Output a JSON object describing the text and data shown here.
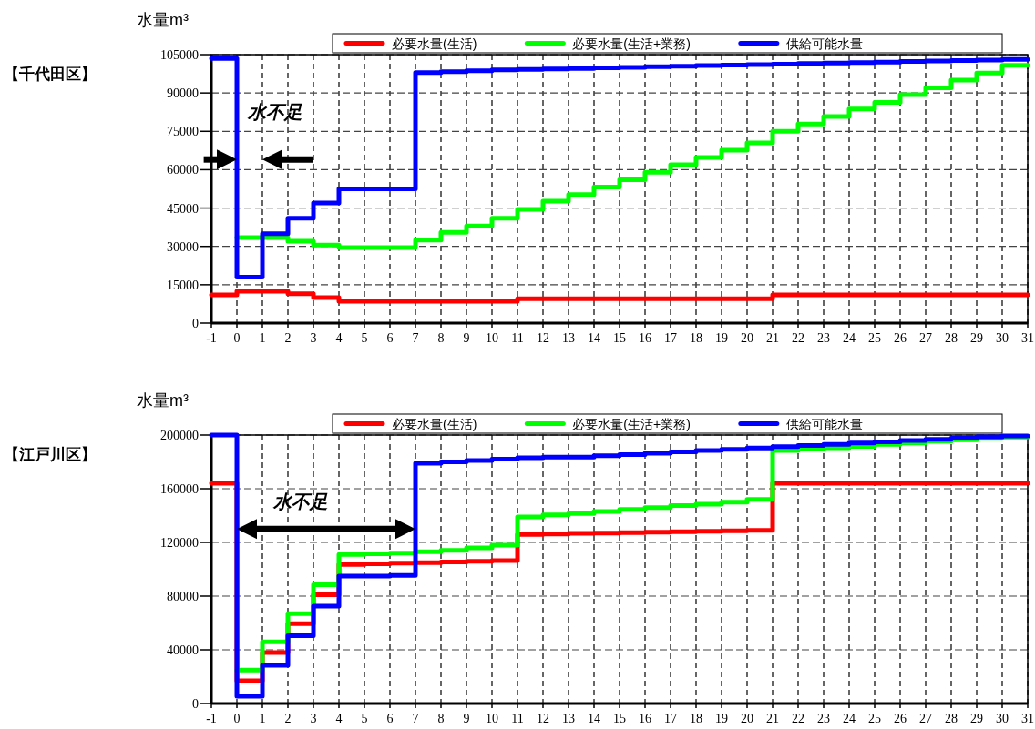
{
  "chart_data": [
    {
      "type": "step",
      "title": "【千代田区】",
      "ylabel": "水量m³",
      "xlim": [
        -1,
        31
      ],
      "xticks": [
        -1,
        0,
        1,
        2,
        3,
        4,
        5,
        6,
        7,
        8,
        9,
        10,
        11,
        12,
        13,
        14,
        15,
        16,
        17,
        18,
        19,
        20,
        21,
        22,
        23,
        24,
        25,
        26,
        27,
        28,
        29,
        30,
        31
      ],
      "ylim": [
        0,
        105000
      ],
      "yticks": [
        0,
        15000,
        30000,
        45000,
        60000,
        75000,
        90000,
        105000
      ],
      "grid": true,
      "legend": "top",
      "x": [
        -1,
        0,
        1,
        2,
        3,
        4,
        5,
        6,
        7,
        8,
        9,
        10,
        11,
        12,
        13,
        14,
        15,
        16,
        17,
        18,
        19,
        20,
        21,
        22,
        23,
        24,
        25,
        26,
        27,
        28,
        29,
        30,
        31
      ],
      "series": [
        {
          "name": "必要水量(生活)",
          "color": "#ff0000",
          "values": [
            11000,
            12500,
            12500,
            11500,
            10000,
            8500,
            8500,
            8500,
            8500,
            8500,
            8500,
            8500,
            9500,
            9500,
            9500,
            9500,
            9500,
            9500,
            9500,
            9500,
            9500,
            9500,
            11000,
            11000,
            11000,
            11000,
            11000,
            11000,
            11000,
            11000,
            11000,
            11000,
            11000
          ]
        },
        {
          "name": "必要水量(生活+業務)",
          "color": "#00ff00",
          "values": [
            null,
            33500,
            33500,
            32000,
            30500,
            29500,
            29500,
            29500,
            32500,
            35500,
            38000,
            41000,
            44500,
            47700,
            50300,
            53200,
            56100,
            59000,
            61900,
            64800,
            67600,
            70500,
            75000,
            77900,
            80800,
            83700,
            86300,
            89300,
            92000,
            95000,
            97800,
            100800,
            100800
          ]
        },
        {
          "name": "供給可能水量",
          "color": "#0000ff",
          "values": [
            103500,
            18000,
            35000,
            41000,
            47000,
            52500,
            52500,
            52500,
            98000,
            98300,
            98700,
            99000,
            99200,
            99400,
            99600,
            99800,
            100000,
            100300,
            100500,
            100700,
            100900,
            101100,
            101300,
            101500,
            101700,
            101900,
            102100,
            102300,
            102500,
            102700,
            102900,
            103100,
            103100
          ]
        }
      ],
      "annotations": [
        "水不足"
      ]
    },
    {
      "type": "step",
      "title": "【江戸川区】",
      "ylabel": "水量m³",
      "xlim": [
        -1,
        31
      ],
      "xticks": [
        -1,
        0,
        1,
        2,
        3,
        4,
        5,
        6,
        7,
        8,
        9,
        10,
        11,
        12,
        13,
        14,
        15,
        16,
        17,
        18,
        19,
        20,
        21,
        22,
        23,
        24,
        25,
        26,
        27,
        28,
        29,
        30,
        31
      ],
      "ylim": [
        0,
        200000
      ],
      "yticks": [
        0,
        40000,
        80000,
        120000,
        160000,
        200000
      ],
      "grid": true,
      "legend": "top",
      "x": [
        -1,
        0,
        1,
        2,
        3,
        4,
        5,
        6,
        7,
        8,
        9,
        10,
        11,
        12,
        13,
        14,
        15,
        16,
        17,
        18,
        19,
        20,
        21,
        22,
        23,
        24,
        25,
        26,
        27,
        28,
        29,
        30,
        31
      ],
      "series": [
        {
          "name": "必要水量(生活)",
          "color": "#ff0000",
          "values": [
            164000,
            17000,
            38000,
            59500,
            81000,
            103500,
            104000,
            104500,
            105000,
            105500,
            106000,
            106500,
            126000,
            126300,
            126700,
            127000,
            127300,
            127700,
            128000,
            128300,
            128700,
            129000,
            164000,
            164000,
            164000,
            164000,
            164000,
            164000,
            164000,
            164000,
            164000,
            164000,
            164000
          ]
        },
        {
          "name": "必要水量(生活+業務)",
          "color": "#00ff00",
          "values": [
            null,
            25000,
            46000,
            67000,
            88500,
            111000,
            111500,
            112000,
            113000,
            114000,
            116000,
            118000,
            139000,
            140500,
            141500,
            143000,
            144500,
            146000,
            147500,
            148500,
            150000,
            152000,
            188500,
            189500,
            190500,
            191500,
            193000,
            194000,
            195500,
            196500,
            197500,
            198500,
            198500
          ]
        },
        {
          "name": "供給可能水量",
          "color": "#0000ff",
          "values": [
            200000,
            5500,
            28500,
            50500,
            72500,
            95000,
            95000,
            95500,
            179000,
            180000,
            181000,
            182000,
            183000,
            183500,
            183600,
            184600,
            185500,
            186500,
            187400,
            188400,
            189300,
            190300,
            191400,
            192200,
            193100,
            194000,
            195000,
            196000,
            196800,
            197700,
            198600,
            199400,
            199400
          ]
        }
      ],
      "annotations": [
        "水不足"
      ]
    }
  ]
}
